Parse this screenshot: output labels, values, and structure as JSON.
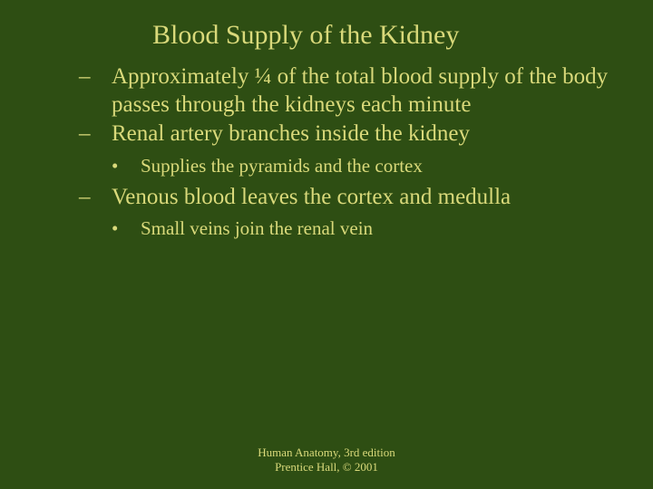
{
  "background_color": "#2e4e13",
  "text_color": "#d9d97a",
  "title": "Blood Supply of the Kidney",
  "title_fontsize": 30,
  "dash_fontsize": 25,
  "bullet_fontsize": 21,
  "footer_fontsize": 13,
  "items": {
    "dash1": "Approximately ¼ of the total blood supply of the body passes through the kidneys each minute",
    "dash2": "Renal artery branches inside the kidney",
    "bullet1": "Supplies the pyramids and the cortex",
    "dash3": "Venous blood leaves the cortex and medulla",
    "bullet2": "Small veins join the renal vein"
  },
  "footer": {
    "line1": "Human Anatomy, 3rd edition",
    "line2": "Prentice Hall, © 2001"
  }
}
